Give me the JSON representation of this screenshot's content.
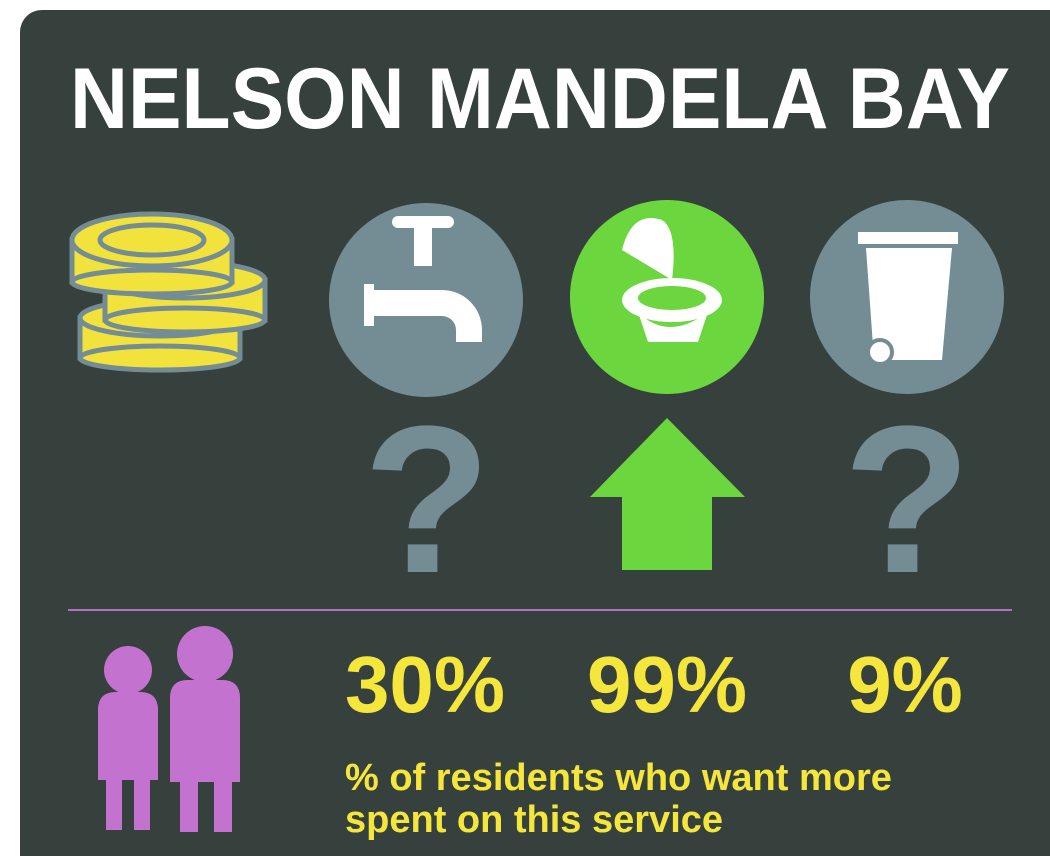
{
  "title": "NELSON MANDELA BAY",
  "markers": [
    "?",
    "?"
  ],
  "stats": [
    "30%",
    "99%",
    "9%"
  ],
  "caption": [
    "% of residents who want more",
    "spent on this service"
  ]
}
